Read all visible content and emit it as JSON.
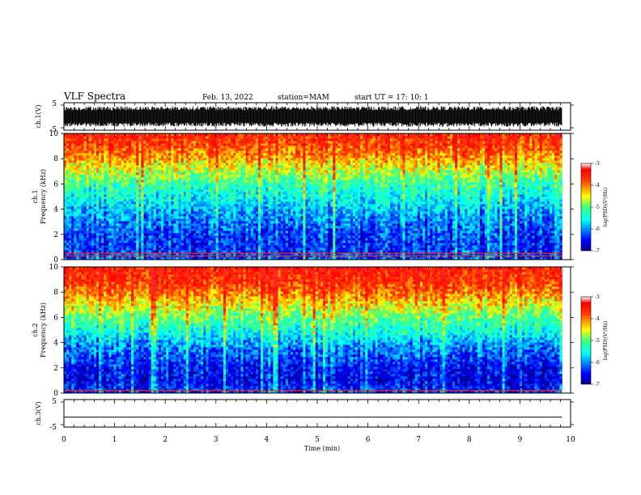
{
  "header": {
    "title": "VLF Spectra",
    "date": "Feb. 13, 2022",
    "station": "station=MAM",
    "start": "start  UT =   17: 10: 1"
  },
  "chart_data": [
    {
      "type": "line",
      "name": "waveform-ch1",
      "ylabel": "ch.1(V)",
      "ylim": [
        -5,
        5
      ],
      "yticks": [
        "5",
        "-5"
      ],
      "xlim": [
        0,
        10
      ],
      "description_of_values": "dense noise waveform filling roughly -3.5 to +3.5 V"
    },
    {
      "type": "heatmap",
      "name": "spectrogram-ch1",
      "ylabel": "ch.1",
      "ylabel2": "Frequency (kHz)",
      "ylim": [
        0,
        10
      ],
      "yticks": [
        "0",
        "2",
        "4",
        "6",
        "8",
        "10"
      ],
      "xlim": [
        0,
        10
      ],
      "data_end_min": 9.83,
      "colorbar": {
        "label": "log(PSD)(V²/Hz)",
        "range": [
          -7,
          -3
        ],
        "ticks": [
          "-3",
          "-4",
          "-5",
          "-6",
          "-7"
        ]
      },
      "profile": [
        {
          "f": 0,
          "v": -6.2
        },
        {
          "f": 1,
          "v": -6.4
        },
        {
          "f": 2,
          "v": -6.3
        },
        {
          "f": 3,
          "v": -6.1
        },
        {
          "f": 4,
          "v": -5.8
        },
        {
          "f": 5,
          "v": -5.5
        },
        {
          "f": 6,
          "v": -5.2
        },
        {
          "f": 7,
          "v": -4.7
        },
        {
          "f": 8,
          "v": -4.2
        },
        {
          "f": 9,
          "v": -3.8
        },
        {
          "f": 10,
          "v": -3.5
        }
      ],
      "lines_kHz": [
        0.3,
        0.5
      ]
    },
    {
      "type": "heatmap",
      "name": "spectrogram-ch2",
      "ylabel": "ch.2",
      "ylabel2": "Frequency (kHz)",
      "ylim": [
        0,
        10
      ],
      "yticks": [
        "0",
        "2",
        "4",
        "6",
        "8",
        "10"
      ],
      "xlim": [
        0,
        10
      ],
      "data_end_min": 9.83,
      "colorbar": {
        "label": "log(PSD)(V²/Hz)",
        "range": [
          -7,
          -3
        ],
        "ticks": [
          "-3",
          "-4",
          "-5",
          "-6",
          "-7"
        ]
      },
      "profile": [
        {
          "f": 0,
          "v": -6.3
        },
        {
          "f": 1,
          "v": -6.6
        },
        {
          "f": 2,
          "v": -6.5
        },
        {
          "f": 3,
          "v": -6.2
        },
        {
          "f": 4,
          "v": -5.9
        },
        {
          "f": 5,
          "v": -5.4
        },
        {
          "f": 6,
          "v": -5.0
        },
        {
          "f": 7,
          "v": -4.5
        },
        {
          "f": 8,
          "v": -4.0
        },
        {
          "f": 9,
          "v": -3.6
        },
        {
          "f": 10,
          "v": -3.4
        }
      ],
      "lines_kHz": [
        0.2
      ]
    },
    {
      "type": "line",
      "name": "waveform-ch3",
      "ylabel": "ch.3(V)",
      "ylim": [
        -5,
        5
      ],
      "yticks": [
        "5",
        "-5"
      ],
      "xlim": [
        0,
        10
      ],
      "value": -1.4,
      "description_of_values": "flat line near -1.4 V"
    }
  ],
  "xaxis": {
    "label": "Time (min)",
    "ticks": [
      "0",
      "1",
      "2",
      "3",
      "4",
      "5",
      "6",
      "7",
      "8",
      "9",
      "10"
    ]
  },
  "colors": {
    "colormap": [
      "#00008f",
      "#0000ff",
      "#0080ff",
      "#00ffff",
      "#80ff80",
      "#ffff00",
      "#ff8000",
      "#ff0000",
      "#800000"
    ]
  }
}
